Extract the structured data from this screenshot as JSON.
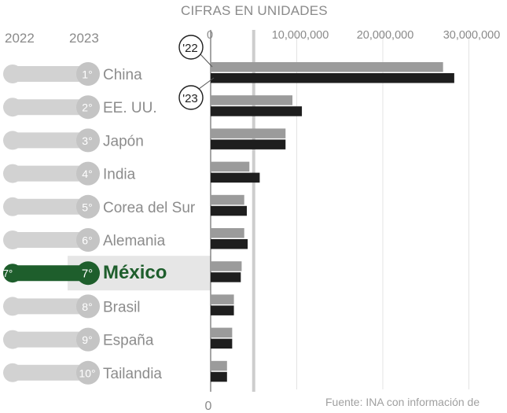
{
  "chart_data": {
    "type": "bar",
    "title": "CIFRAS EN UNIDADES",
    "year_labels": [
      "2022",
      "2023"
    ],
    "x_ticks": [
      "0",
      "10,000,000",
      "20,000,000",
      "30,000,000"
    ],
    "x_tick_values": [
      0,
      10000000,
      20000000,
      30000000
    ],
    "xlim": [
      0,
      33000000
    ],
    "x_bottom_label": "0",
    "categories": [
      "China",
      "EE. UU.",
      "Japón",
      "India",
      "Corea del Sur",
      "Alemania",
      "México",
      "Brasil",
      "España",
      "Tailandia"
    ],
    "rank_2022": [
      "1°",
      "2°",
      "3°",
      "4°",
      "5°",
      "6°",
      "7°",
      "8°",
      "9°",
      "10°"
    ],
    "rank_2023": [
      "1°",
      "2°",
      "3°",
      "4°",
      "5°",
      "6°",
      "7°",
      "8°",
      "9°",
      "10°"
    ],
    "series": [
      {
        "name": "'22",
        "color": "#9b9b9b",
        "values": [
          27000000,
          9500000,
          8700000,
          4500000,
          3900000,
          3900000,
          3600000,
          2700000,
          2500000,
          1900000
        ]
      },
      {
        "name": "'23",
        "color": "#1e1e1e",
        "values": [
          28300000,
          10600000,
          8700000,
          5700000,
          4200000,
          4300000,
          3500000,
          2700000,
          2500000,
          1900000
        ]
      }
    ],
    "highlight": "México",
    "highlight_color": "#1e5e2c",
    "callouts": [
      "'22",
      "'23"
    ],
    "source": "Fuente: INA con información de"
  }
}
